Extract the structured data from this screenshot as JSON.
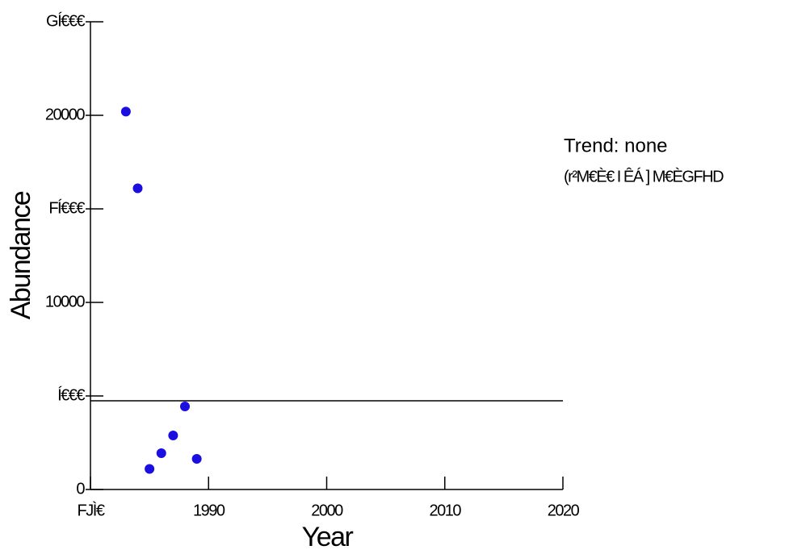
{
  "chart_data": {
    "type": "scatter",
    "x_label": "Year",
    "y_label": "Abundance",
    "annotations": [
      "Trend: none",
      "(r²M€È€ I ÊÁ ] M€ÈGFHD"
    ],
    "x": [
      1983,
      1984,
      1985,
      1986,
      1987,
      1988,
      1989
    ],
    "series": [
      {
        "color": "#1a0fe0",
        "values": [
          20200,
          16100,
          1100,
          1940,
          2890,
          4440,
          1640
        ]
      }
    ],
    "trend_value": 4740,
    "xlim": [
      1980,
      2020
    ],
    "xticks": [
      {
        "value": 1980,
        "label": "FJÌ€"
      },
      1990,
      2000,
      2010,
      2020
    ],
    "ylim": [
      0,
      25000
    ],
    "yticks": [
      0,
      {
        "value": 5000,
        "label": "Í€€€"
      },
      10000,
      {
        "value": 15000,
        "label": "FÍ€€€"
      },
      20000,
      {
        "value": 25000,
        "label": "GÍ€€€"
      }
    ],
    "grid": false
  }
}
